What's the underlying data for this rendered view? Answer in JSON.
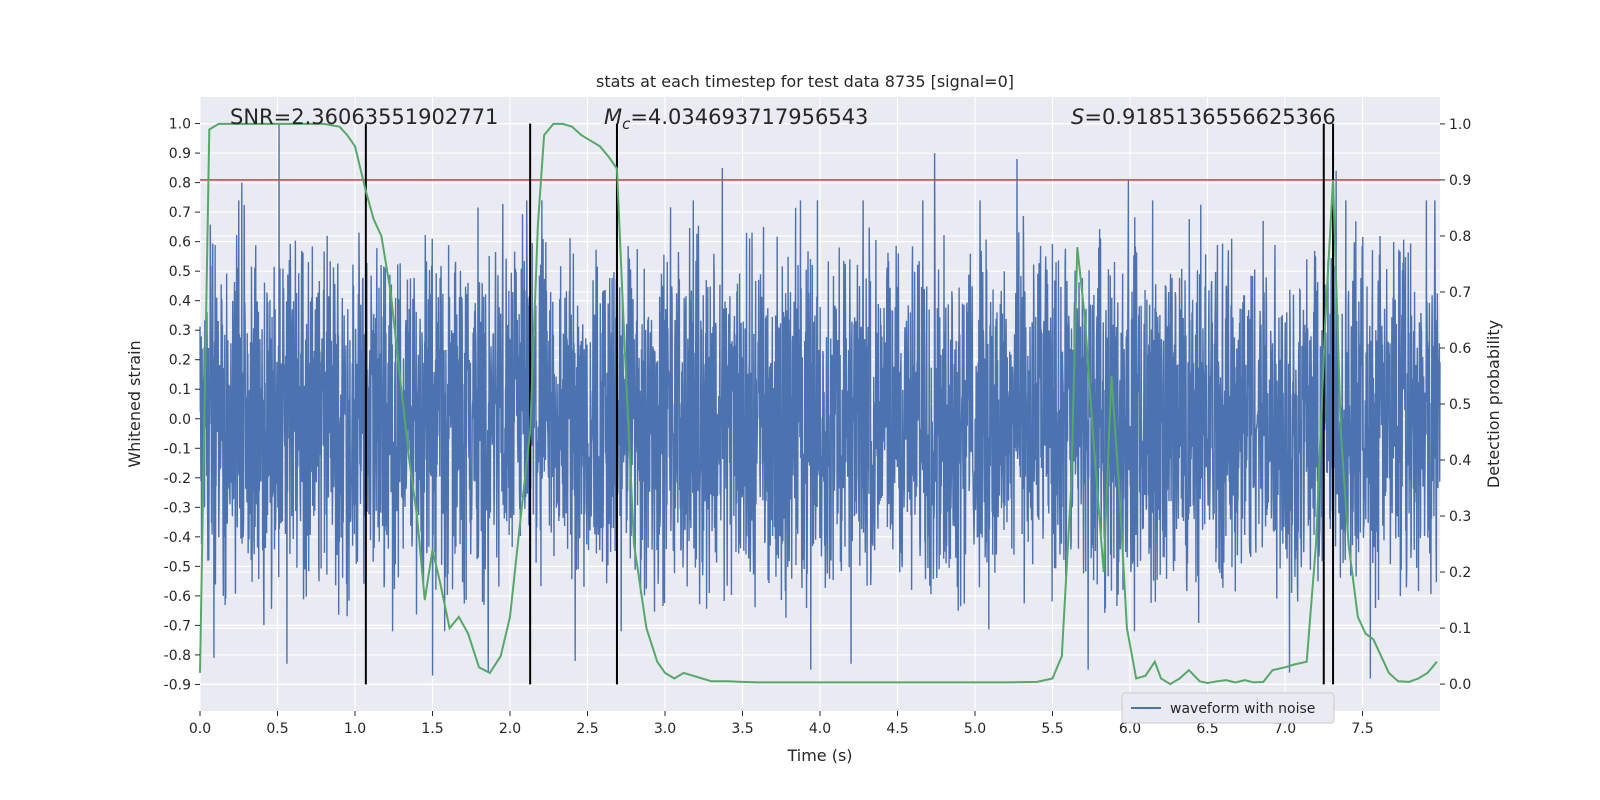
{
  "chart_data": {
    "type": "line",
    "title": "stats at each timestep for test data 8735 [signal=0]",
    "xlabel": "Time (s)",
    "ylabel_left": "Whitened strain",
    "ylabel_right": "Detection probability",
    "xlim": [
      0.0,
      8.0
    ],
    "ylim_left": [
      -0.99,
      1.09
    ],
    "ylim_right": [
      -0.048,
      1.048
    ],
    "x_ticks": [
      "0.0",
      "0.5",
      "1.0",
      "1.5",
      "2.0",
      "2.5",
      "3.0",
      "3.5",
      "4.0",
      "4.5",
      "5.0",
      "5.5",
      "6.0",
      "6.5",
      "7.0",
      "7.5"
    ],
    "y_left_ticks": [
      "1.0",
      "0.9",
      "0.8",
      "0.7",
      "0.6",
      "0.5",
      "0.4",
      "0.3",
      "0.2",
      "0.1",
      "0.0",
      "-0.1",
      "-0.2",
      "-0.3",
      "-0.4",
      "-0.5",
      "-0.6",
      "-0.7",
      "-0.8",
      "-0.9"
    ],
    "y_right_ticks": [
      "1.0",
      "0.9",
      "0.8",
      "0.7",
      "0.6",
      "0.5",
      "0.4",
      "0.3",
      "0.2",
      "0.1",
      "0.0"
    ],
    "annotations": {
      "snr": "SNR=2.36063551902771",
      "mc_symbol": "M",
      "mc_sub": "c",
      "mc_value": "=4.034693717956543",
      "s_symbol": "S",
      "s_value": "=0.9185136556625366"
    },
    "threshold_line": {
      "axis": "right",
      "value": 0.9,
      "color": "#c44e52"
    },
    "vertical_lines": [
      1.07,
      2.13,
      2.69,
      7.25,
      7.31
    ],
    "vertical_lines_range_left": [
      -0.9,
      1.0
    ],
    "grid": true,
    "legend": {
      "position": "lower-right",
      "entries": [
        "waveform with noise"
      ]
    },
    "colors": {
      "waveform": "#4c72b0",
      "probability": "#55a868",
      "background": "#eaeaf2",
      "vlines": "#000000"
    },
    "series": [
      {
        "name": "waveform with noise",
        "axis": "left",
        "description_envelope": "dense noise, approx -0.6..+0.6 with spikes up to 1.0 and down to -0.88",
        "spikes": [
          [
            0.51,
            1.0
          ],
          [
            0.56,
            -0.83
          ],
          [
            0.27,
            0.8
          ],
          [
            1.86,
            -0.86
          ],
          [
            1.5,
            -0.87
          ],
          [
            3.37,
            0.85
          ],
          [
            4.74,
            0.9
          ],
          [
            5.27,
            0.88
          ],
          [
            5.99,
            0.81
          ],
          [
            7.33,
            0.84
          ],
          [
            0.09,
            -0.81
          ],
          [
            4.2,
            -0.83
          ],
          [
            3.94,
            -0.85
          ],
          [
            7.03,
            -0.86
          ],
          [
            7.55,
            -0.88
          ],
          [
            5.73,
            -0.85
          ],
          [
            2.13,
            -0.81
          ],
          [
            2.42,
            -0.82
          ]
        ]
      },
      {
        "name": "detection probability",
        "axis": "right",
        "x": [
          0.0,
          0.06,
          0.12,
          0.2,
          0.3,
          0.4,
          0.5,
          0.6,
          0.7,
          0.8,
          0.9,
          0.95,
          1.0,
          1.07,
          1.12,
          1.17,
          1.23,
          1.29,
          1.35,
          1.4,
          1.45,
          1.5,
          1.55,
          1.61,
          1.67,
          1.73,
          1.8,
          1.87,
          1.94,
          2.0,
          2.07,
          2.13,
          2.18,
          2.22,
          2.28,
          2.34,
          2.4,
          2.46,
          2.52,
          2.58,
          2.64,
          2.69,
          2.74,
          2.8,
          2.88,
          2.95,
          3.0,
          3.06,
          3.12,
          3.18,
          3.24,
          3.3,
          3.4,
          3.5,
          3.6,
          3.8,
          4.0,
          4.2,
          4.4,
          4.6,
          4.8,
          5.0,
          5.2,
          5.4,
          5.5,
          5.56,
          5.62,
          5.66,
          5.71,
          5.76,
          5.83,
          5.88,
          5.93,
          5.98,
          6.04,
          6.1,
          6.16,
          6.2,
          6.26,
          6.32,
          6.38,
          6.45,
          6.5,
          6.56,
          6.62,
          6.68,
          6.74,
          6.8,
          6.86,
          6.92,
          7.0,
          7.06,
          7.14,
          7.2,
          7.26,
          7.31,
          7.36,
          7.41,
          7.47,
          7.52,
          7.57,
          7.62,
          7.67,
          7.73,
          7.8,
          7.86,
          7.92,
          7.98
        ],
        "y": [
          0.02,
          0.99,
          1.0,
          1.0,
          1.0,
          1.0,
          1.0,
          1.0,
          1.0,
          1.0,
          0.995,
          0.98,
          0.96,
          0.88,
          0.83,
          0.8,
          0.7,
          0.55,
          0.4,
          0.3,
          0.15,
          0.24,
          0.18,
          0.1,
          0.12,
          0.09,
          0.03,
          0.02,
          0.05,
          0.12,
          0.3,
          0.45,
          0.82,
          0.98,
          1.0,
          1.0,
          0.995,
          0.98,
          0.97,
          0.96,
          0.94,
          0.92,
          0.6,
          0.25,
          0.1,
          0.04,
          0.02,
          0.01,
          0.02,
          0.015,
          0.01,
          0.005,
          0.005,
          0.004,
          0.003,
          0.003,
          0.003,
          0.003,
          0.003,
          0.003,
          0.003,
          0.003,
          0.003,
          0.004,
          0.01,
          0.05,
          0.35,
          0.78,
          0.65,
          0.45,
          0.2,
          0.55,
          0.35,
          0.1,
          0.01,
          0.015,
          0.04,
          0.01,
          0.0,
          0.01,
          0.025,
          0.005,
          0.002,
          0.005,
          0.007,
          0.003,
          0.007,
          0.003,
          0.004,
          0.025,
          0.03,
          0.035,
          0.04,
          0.25,
          0.65,
          0.9,
          0.45,
          0.25,
          0.12,
          0.09,
          0.08,
          0.05,
          0.02,
          0.005,
          0.004,
          0.01,
          0.02,
          0.04
        ]
      }
    ]
  }
}
